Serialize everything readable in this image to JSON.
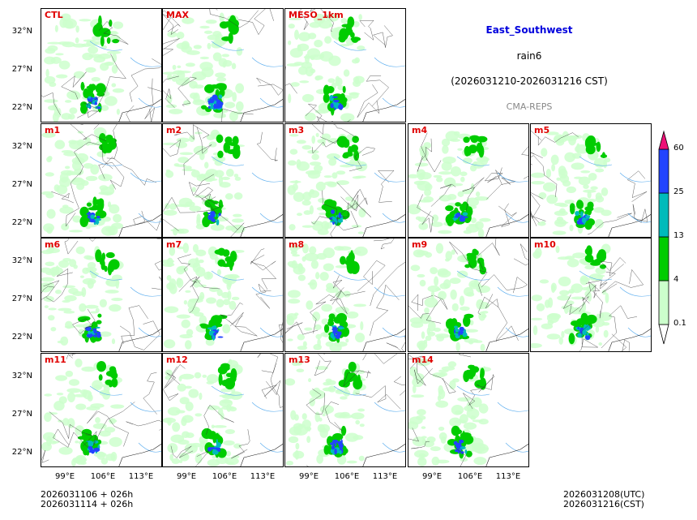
{
  "header": {
    "region": "East_Southwest",
    "variable": "rain6",
    "period": "(2026031210-2026031216 CST)",
    "system": "CMA-REPS",
    "region_color": "#0000dd",
    "system_color": "#888888"
  },
  "panels": [
    "CTL",
    "MAX",
    "MESO_1km",
    "m1",
    "m2",
    "m3",
    "m4",
    "m5",
    "m6",
    "m7",
    "m8",
    "m9",
    "m10",
    "m11",
    "m12",
    "m13",
    "m14"
  ],
  "axes": {
    "lat_labels": [
      "32°N",
      "27°N",
      "22°N"
    ],
    "lon_labels": [
      "99°E",
      "106°E",
      "113°E"
    ]
  },
  "colorbar": {
    "levels": [
      "0.1",
      "4",
      "13",
      "25",
      "60"
    ],
    "colors": [
      "#ccffcc",
      "#00cc00",
      "#00bbbb",
      "#2244ff",
      "#ee1177"
    ]
  },
  "footer": {
    "init_line": "2026031106  +  026h",
    "init_line_cst": "2026031114  +  026h",
    "valid_utc": "2026031208(UTC)",
    "valid_cst": "2026031216(CST)"
  }
}
